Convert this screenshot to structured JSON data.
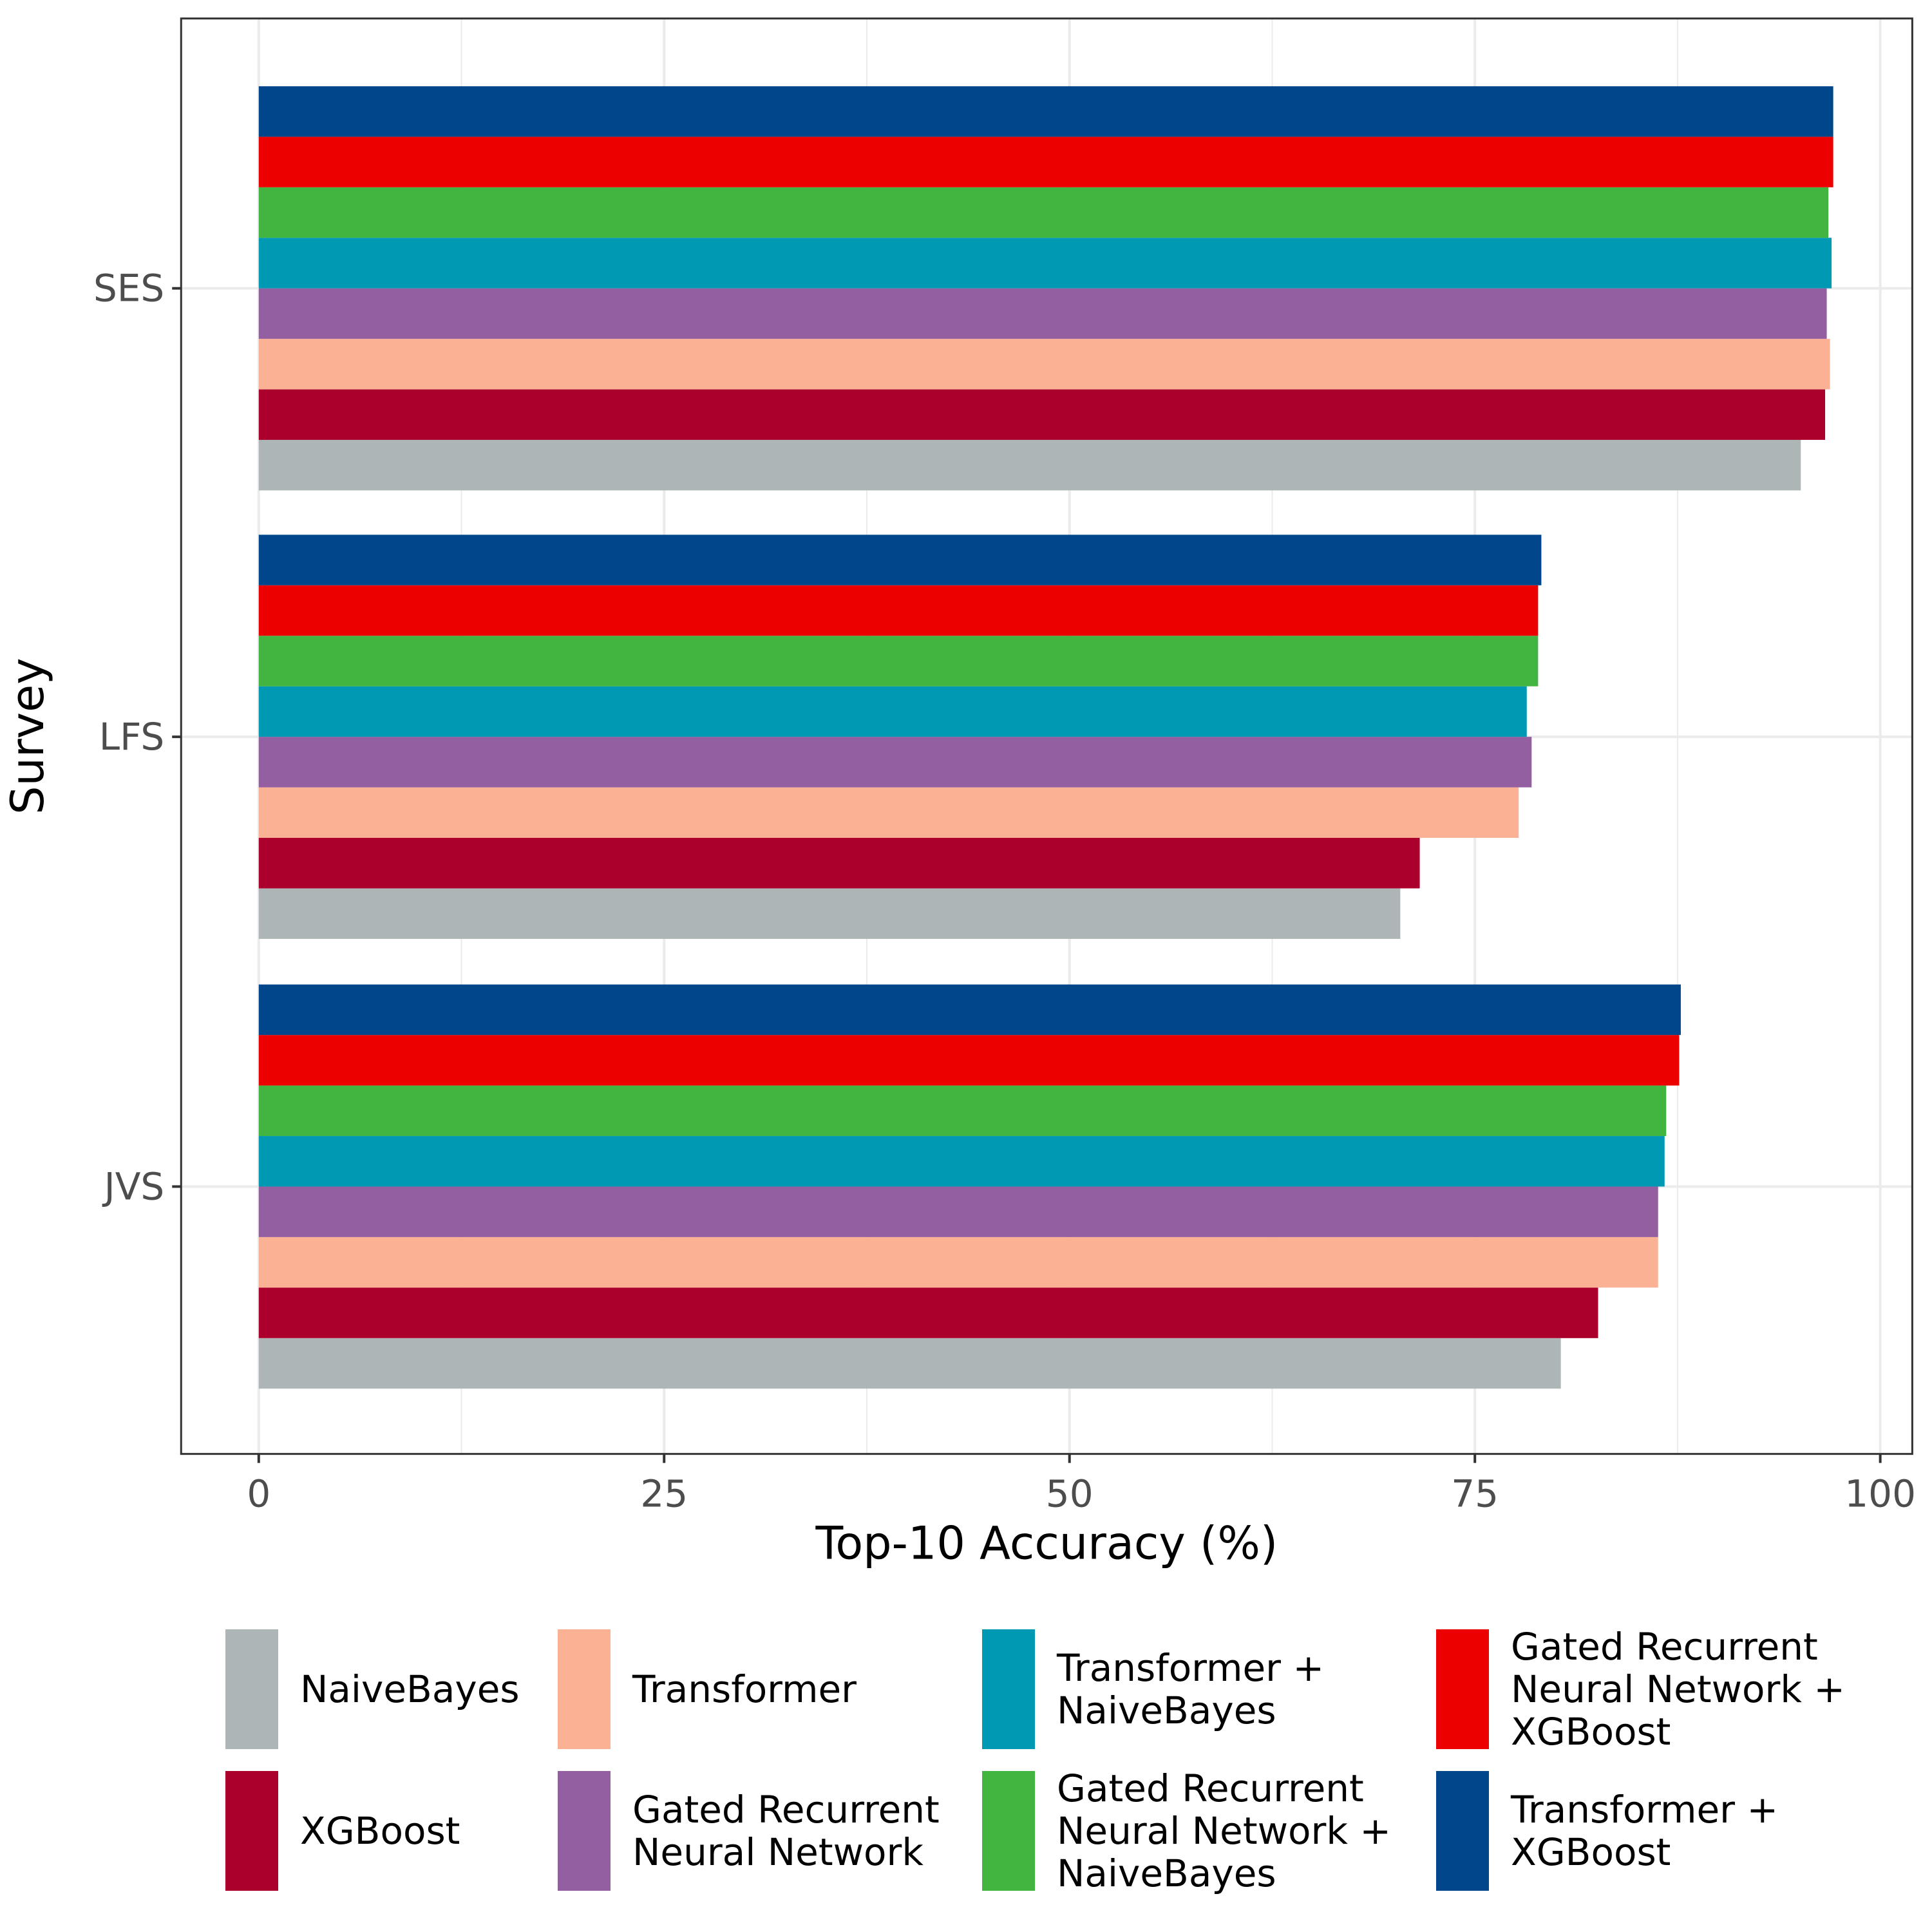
{
  "chart_data": {
    "type": "bar",
    "orientation": "horizontal",
    "title": "",
    "xlabel": "Top-10 Accuracy (%)",
    "ylabel": "Survey",
    "xlim": [
      0,
      100
    ],
    "xticks": [
      "0",
      "25",
      "50",
      "75",
      "100"
    ],
    "xtick_values": [
      0,
      25,
      50,
      75,
      100
    ],
    "categories": [
      "SES",
      "LFS",
      "JVS"
    ],
    "grid": true,
    "legend_position": "bottom",
    "series": [
      {
        "name": "NaiveBayes",
        "color": "#adb5b6",
        "values": [
          95.1,
          70.4,
          80.3
        ]
      },
      {
        "name": "XGBoost",
        "color": "#ab002c",
        "values": [
          96.6,
          71.6,
          82.6
        ]
      },
      {
        "name": "Transformer",
        "color": "#fbb294",
        "values": [
          96.9,
          77.7,
          86.3
        ]
      },
      {
        "name": "Gated Recurrent Neural Network",
        "color": "#935fa0",
        "values": [
          96.7,
          78.5,
          86.3
        ]
      },
      {
        "name": "Transformer + NaiveBayes",
        "color": "#0099b4",
        "values": [
          97.0,
          78.2,
          86.7
        ]
      },
      {
        "name": "Gated Recurrent Neural Network + NaiveBayes",
        "color": "#42b540",
        "values": [
          96.8,
          78.9,
          86.8
        ]
      },
      {
        "name": "Gated Recurrent Neural Network + XGBoost",
        "color": "#ed0000",
        "values": [
          97.1,
          78.9,
          87.6
        ]
      },
      {
        "name": "Transformer + XGBoost",
        "color": "#00468b",
        "values": [
          97.1,
          79.1,
          87.7
        ]
      }
    ]
  },
  "legend": {
    "items": [
      {
        "label": "NaiveBayes",
        "color": "#adb5b6"
      },
      {
        "label": "XGBoost",
        "color": "#ab002c"
      },
      {
        "label": "Transformer",
        "color": "#fbb294"
      },
      {
        "label": "Gated Recurrent\nNeural Network",
        "color": "#935fa0"
      },
      {
        "label": "Transformer +\nNaiveBayes",
        "color": "#0099b4"
      },
      {
        "label": "Gated Recurrent\nNeural Network +\nNaiveBayes",
        "color": "#42b540"
      },
      {
        "label": "Gated Recurrent\nNeural Network +\nXGBoost",
        "color": "#ed0000"
      },
      {
        "label": "Transformer +\nXGBoost",
        "color": "#00468b"
      }
    ]
  }
}
